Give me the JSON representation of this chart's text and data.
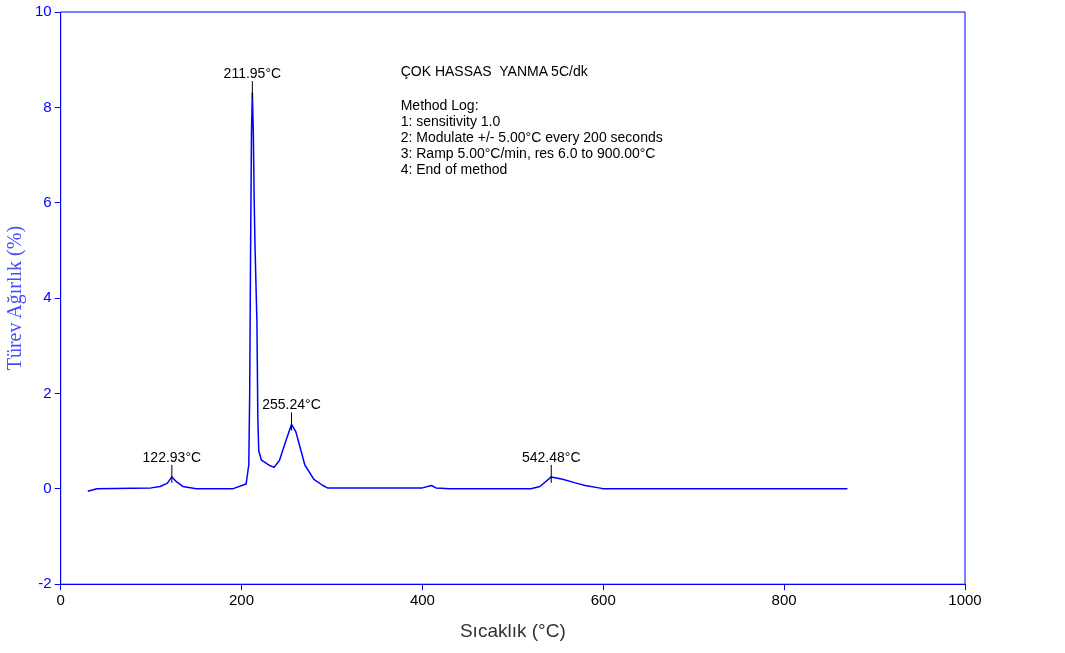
{
  "chart_data": {
    "type": "line",
    "xlabel": "Sıcaklık (°C)",
    "ylabel": "Türev Ağırlık (%)",
    "x": [
      30,
      40,
      100,
      110,
      118,
      122.93,
      128,
      135,
      150,
      190,
      205,
      208,
      209,
      210,
      211,
      211.95,
      213,
      214,
      215,
      217,
      218,
      219,
      222,
      230,
      236,
      242,
      248,
      255.24,
      260,
      265,
      270,
      280,
      290,
      295,
      400,
      410,
      415,
      430,
      520,
      530,
      542.48,
      555,
      570,
      580,
      595,
      600,
      870
    ],
    "series": [
      {
        "color": "#0000ff",
        "values": [
          -0.05,
          0,
          0.02,
          0.05,
          0.12,
          0.25,
          0.15,
          0.05,
          0,
          0,
          0.1,
          0.5,
          2,
          5,
          7.5,
          8.3,
          7.5,
          6,
          5,
          3.5,
          1.5,
          0.8,
          0.6,
          0.5,
          0.45,
          0.6,
          0.95,
          1.35,
          1.2,
          0.85,
          0.5,
          0.2,
          0.07,
          0.02,
          0.02,
          0.07,
          0.02,
          0,
          0,
          0.05,
          0.25,
          0.2,
          0.12,
          0.07,
          0.02,
          0,
          0
        ]
      }
    ],
    "xlim": [
      0,
      1000
    ],
    "xticks": [
      0,
      200,
      400,
      600,
      800,
      1000
    ],
    "ylim": [
      -2,
      10
    ],
    "yticks": [
      -2,
      0,
      2,
      4,
      6,
      8,
      10
    ],
    "grid": false,
    "legend": false,
    "marker": "none",
    "line_style": "solid",
    "annotations": [
      {
        "text": "122.93°C",
        "x": 122.93,
        "y": 0.25
      },
      {
        "text": "211.95°C",
        "x": 211.95,
        "y": 8.3
      },
      {
        "text": "255.24°C",
        "x": 255.24,
        "y": 1.35
      },
      {
        "text": "542.48°C",
        "x": 542.48,
        "y": 0.25
      },
      "ÇOK HASSAS  YANMA 5C/dk",
      "Method Log:",
      "1: sensitivity 1.0",
      "2: Modulate +/- 5.00°C every 200 seconds",
      "3: Ramp 5.00°C/min, res 6.0 to 900.00°C",
      "4: End of method"
    ]
  }
}
